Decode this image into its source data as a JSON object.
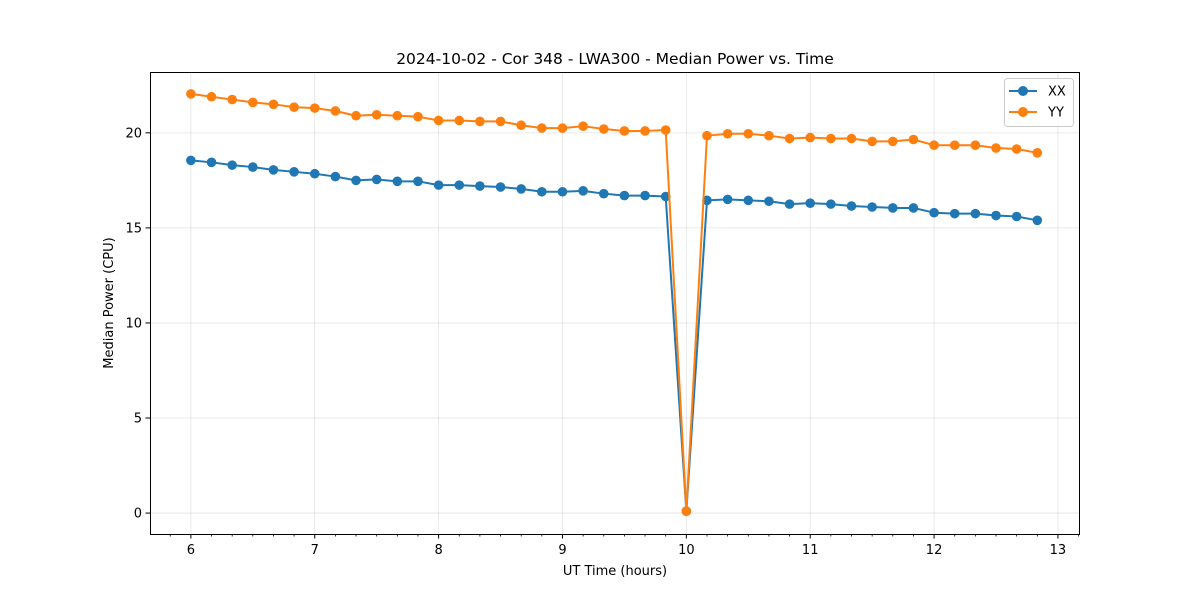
{
  "chart_data": {
    "type": "line",
    "title": "2024-10-02 - Cor 348 - LWA300 - Median Power vs. Time",
    "xlabel": "UT Time (hours)",
    "ylabel": "Median Power (CPU)",
    "xlim": [
      5.67,
      13.17
    ],
    "ylim": [
      -1.1,
      23.2
    ],
    "xticks": [
      6,
      7,
      8,
      9,
      10,
      11,
      12,
      13
    ],
    "yticks": [
      0,
      5,
      10,
      15,
      20
    ],
    "grid": true,
    "legend_position": "top-right",
    "x": [
      6.0,
      6.1667,
      6.3333,
      6.5,
      6.6667,
      6.8333,
      7.0,
      7.1667,
      7.3333,
      7.5,
      7.6667,
      7.8333,
      8.0,
      8.1667,
      8.3333,
      8.5,
      8.6667,
      8.8333,
      9.0,
      9.1667,
      9.3333,
      9.5,
      9.6667,
      9.8333,
      10.0,
      10.1667,
      10.3333,
      10.5,
      10.6667,
      10.8333,
      11.0,
      11.1667,
      11.3333,
      11.5,
      11.6667,
      11.8333,
      12.0,
      12.1667,
      12.3333,
      12.5,
      12.6667,
      12.8333
    ],
    "series": [
      {
        "name": "XX",
        "color": "#1f77b4",
        "values": [
          18.55,
          18.45,
          18.3,
          18.2,
          18.05,
          17.95,
          17.85,
          17.7,
          17.5,
          17.55,
          17.45,
          17.45,
          17.25,
          17.25,
          17.2,
          17.15,
          17.05,
          16.9,
          16.9,
          16.95,
          16.8,
          16.7,
          16.7,
          16.65,
          0.1,
          16.45,
          16.5,
          16.45,
          16.4,
          16.25,
          16.3,
          16.25,
          16.15,
          16.1,
          16.05,
          16.05,
          15.8,
          15.75,
          15.75,
          15.65,
          15.6,
          15.4
        ]
      },
      {
        "name": "YY",
        "color": "#ff7f0e",
        "values": [
          22.05,
          21.9,
          21.75,
          21.6,
          21.5,
          21.35,
          21.3,
          21.15,
          20.9,
          20.95,
          20.9,
          20.85,
          20.65,
          20.65,
          20.6,
          20.6,
          20.4,
          20.25,
          20.25,
          20.35,
          20.2,
          20.1,
          20.1,
          20.15,
          0.1,
          19.85,
          19.95,
          19.95,
          19.85,
          19.7,
          19.75,
          19.7,
          19.7,
          19.55,
          19.55,
          19.65,
          19.35,
          19.35,
          19.35,
          19.2,
          19.15,
          18.95
        ]
      }
    ]
  }
}
